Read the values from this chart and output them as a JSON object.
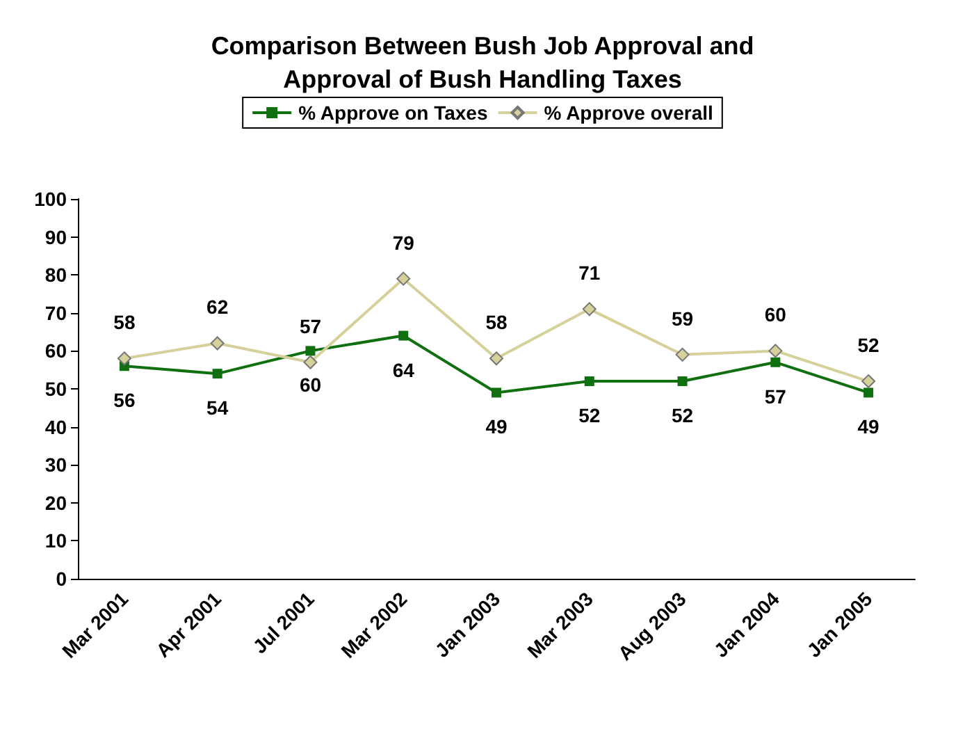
{
  "chart_data": {
    "type": "line",
    "title": "Comparison Between Bush Job Approval and\nApproval of Bush Handling Taxes",
    "categories": [
      "Mar 2001",
      "Apr 2001",
      "Jul 2001",
      "Mar 2002",
      "Jan 2003",
      "Mar 2003",
      "Aug 2003",
      "Jan 2004",
      "Jan 2005"
    ],
    "series": [
      {
        "name": "% Approve on Taxes",
        "color": "#107010",
        "marker": "square",
        "values": [
          56,
          54,
          60,
          64,
          49,
          52,
          52,
          57,
          49
        ]
      },
      {
        "name": "% Approve overall",
        "color": "#d6d09a",
        "marker": "diamond",
        "values": [
          58,
          62,
          57,
          79,
          58,
          71,
          59,
          60,
          52
        ]
      }
    ],
    "ylim": [
      0,
      100
    ],
    "yticks": [
      0,
      10,
      20,
      30,
      40,
      50,
      60,
      70,
      80,
      90,
      100
    ],
    "grid": false,
    "legend": "top",
    "data_labels": true
  }
}
